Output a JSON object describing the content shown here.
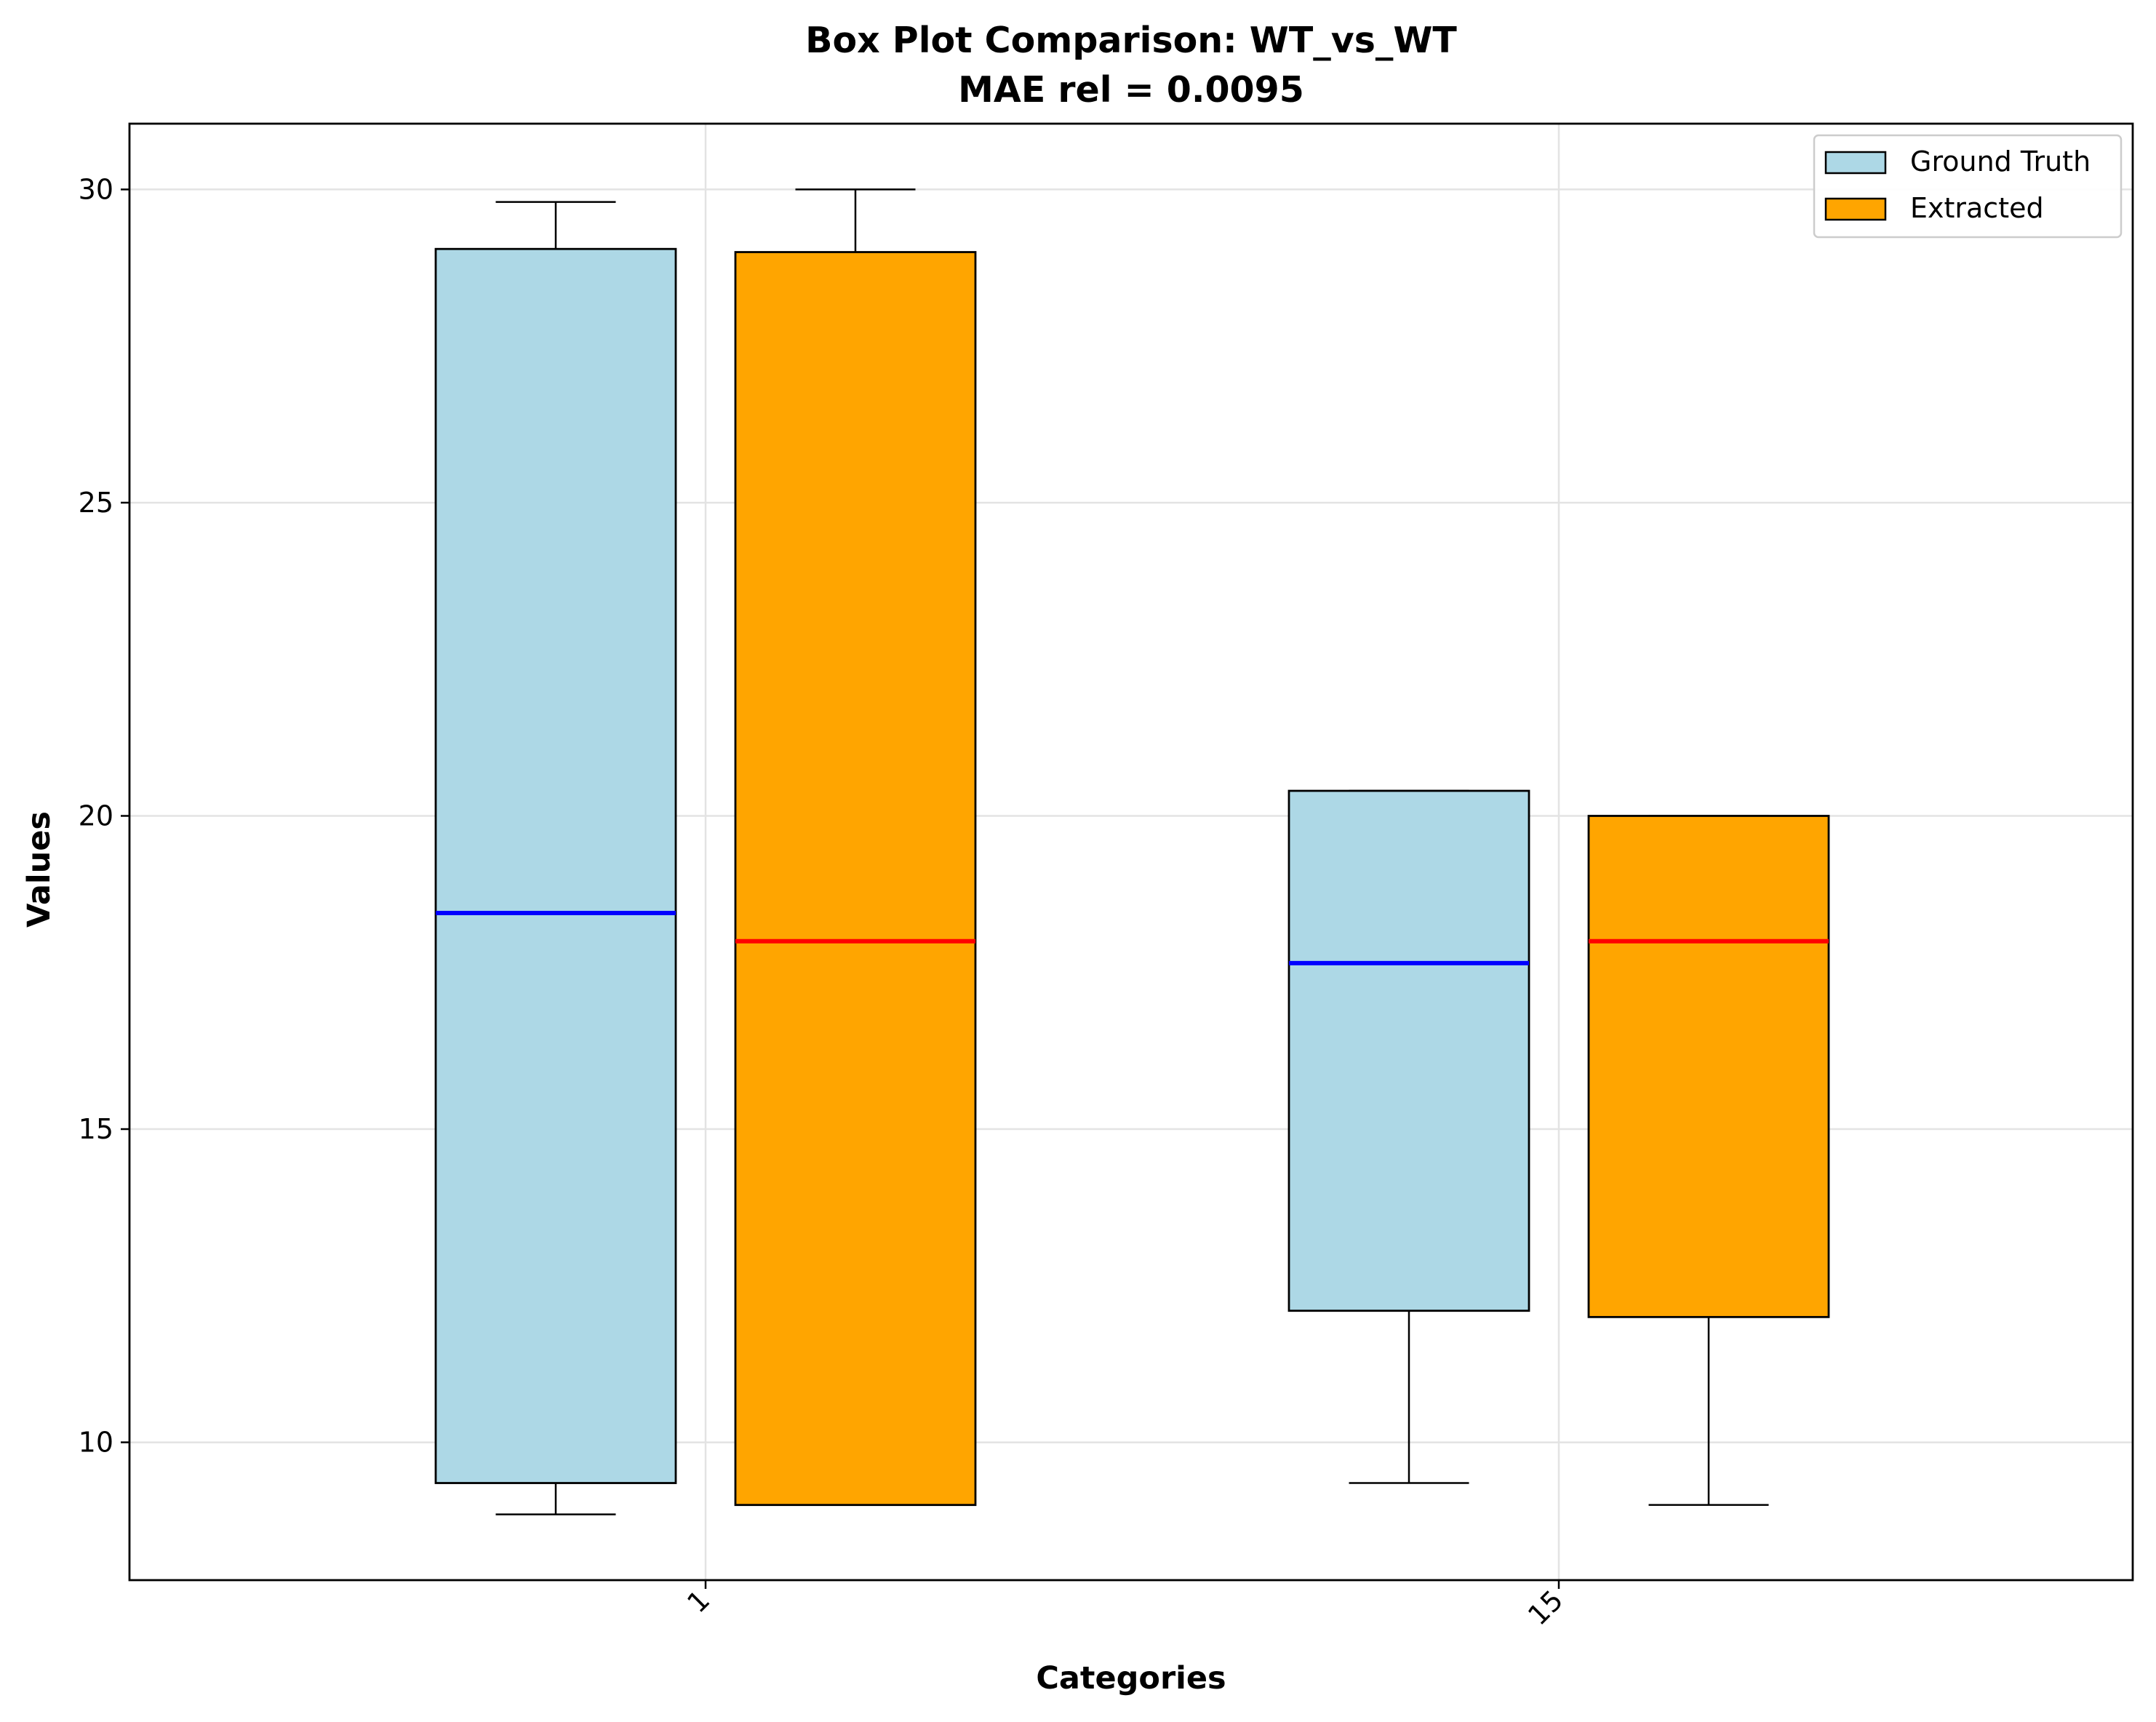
{
  "chart_data": {
    "type": "box",
    "title": "Box Plot Comparison: WT_vs_WT",
    "subtitle": "MAE rel = 0.0095",
    "xlabel": "Categories",
    "ylabel": "Values",
    "categories": [
      "1",
      "15"
    ],
    "ylim": [
      7.8,
      31.05
    ],
    "yticks": [
      "10",
      "15",
      "20",
      "25",
      "30"
    ],
    "grid": true,
    "legend_position": "top-right",
    "series": [
      {
        "name": "Ground Truth",
        "fill": "#add8e6",
        "median_color": "#0000ff",
        "boxes": [
          {
            "category": "1",
            "whisker_low": 8.85,
            "q1": 9.35,
            "median": 18.45,
            "q3": 29.05,
            "whisker_high": 29.8
          },
          {
            "category": "15",
            "whisker_low": 9.35,
            "q1": 12.1,
            "median": 17.65,
            "q3": 20.4,
            "whisker_high": 20.4
          }
        ]
      },
      {
        "name": "Extracted",
        "fill": "#ffa500",
        "median_color": "#ff0000",
        "boxes": [
          {
            "category": "1",
            "whisker_low": 9.0,
            "q1": 9.0,
            "median": 18.0,
            "q3": 29.0,
            "whisker_high": 30.0
          },
          {
            "category": "15",
            "whisker_low": 9.0,
            "q1": 12.0,
            "median": 18.0,
            "q3": 20.0,
            "whisker_high": 20.0
          }
        ]
      }
    ]
  }
}
